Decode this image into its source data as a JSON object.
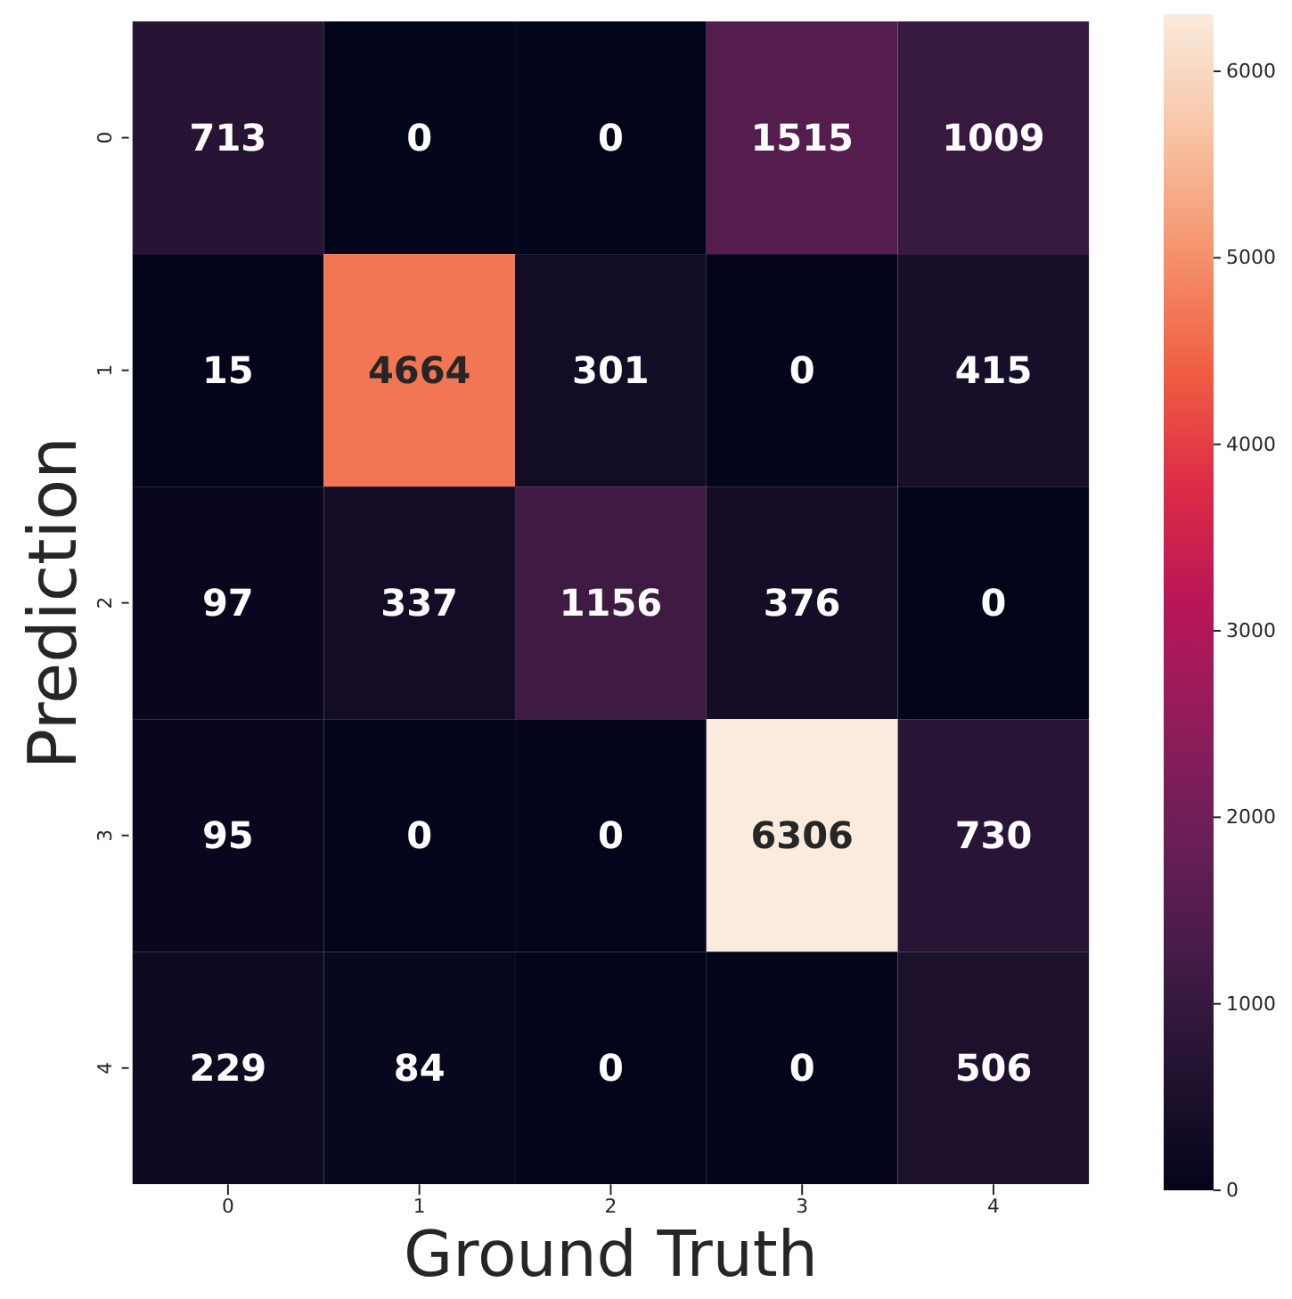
{
  "chart_data": {
    "type": "heatmap",
    "xlabel": "Ground Truth",
    "ylabel": "Prediction",
    "categories": [
      "0",
      "1",
      "2",
      "3",
      "4"
    ],
    "y_categories": [
      "0",
      "1",
      "2",
      "3",
      "4"
    ],
    "cells": [
      [
        713,
        0,
        0,
        1515,
        1009
      ],
      [
        15,
        4664,
        301,
        0,
        415
      ],
      [
        97,
        337,
        1156,
        376,
        0
      ],
      [
        95,
        0,
        0,
        6306,
        730
      ],
      [
        229,
        84,
        0,
        0,
        506
      ]
    ],
    "data_labels": true,
    "clim": [
      0,
      6306
    ],
    "cticks": [
      0,
      1000,
      2000,
      3000,
      4000,
      5000,
      6000
    ]
  }
}
